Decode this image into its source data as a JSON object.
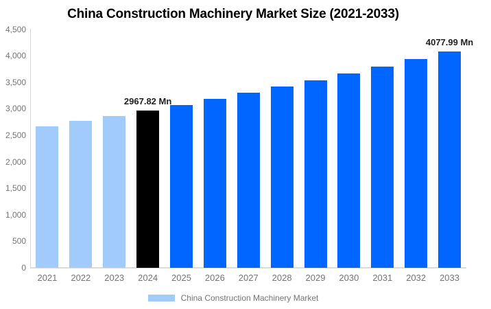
{
  "chart_data": {
    "type": "bar",
    "title": "China Construction Machinery Market Size (2021-2033)",
    "unit": "Mn",
    "categories": [
      "2021",
      "2022",
      "2023",
      "2024",
      "2025",
      "2026",
      "2027",
      "2028",
      "2029",
      "2030",
      "2031",
      "2032",
      "2033"
    ],
    "values": [
      2669.6,
      2765.5,
      2864.9,
      2967.82,
      3074.5,
      3184.9,
      3299.4,
      3417.9,
      3540.7,
      3668.0,
      3799.7,
      3936.3,
      4077.99
    ],
    "bar_colors": [
      "#a0cbfa",
      "#a0cbfa",
      "#a0cbfa",
      "#000000",
      "#0066ff",
      "#0066ff",
      "#0066ff",
      "#0066ff",
      "#0066ff",
      "#0066ff",
      "#0066ff",
      "#0066ff",
      "#0066ff"
    ],
    "data_labels": [
      {
        "index": 3,
        "text": "2967.82 Mn"
      },
      {
        "index": 12,
        "text": "4077.99 Mn"
      }
    ],
    "ylim": [
      0,
      4500
    ],
    "y_tick_labels": [
      "0",
      "500",
      "1,000",
      "1,500",
      "2,000",
      "2,500",
      "3,000",
      "3,500",
      "4,000",
      "4,500"
    ],
    "grid": false,
    "legend_position": "bottom",
    "legend": {
      "label": "China Construction Machinery Market",
      "swatch_color": "#a0cbfa"
    },
    "colors": {
      "historical_bar": "#a0cbfa",
      "base_year_bar": "#000000",
      "forecast_bar": "#0066ff",
      "axis_text": "#757575",
      "axis_line": "#d9d9d9",
      "baseline": "#dcdcdc",
      "data_label_text": "#222222",
      "title_text": "#000000"
    }
  }
}
